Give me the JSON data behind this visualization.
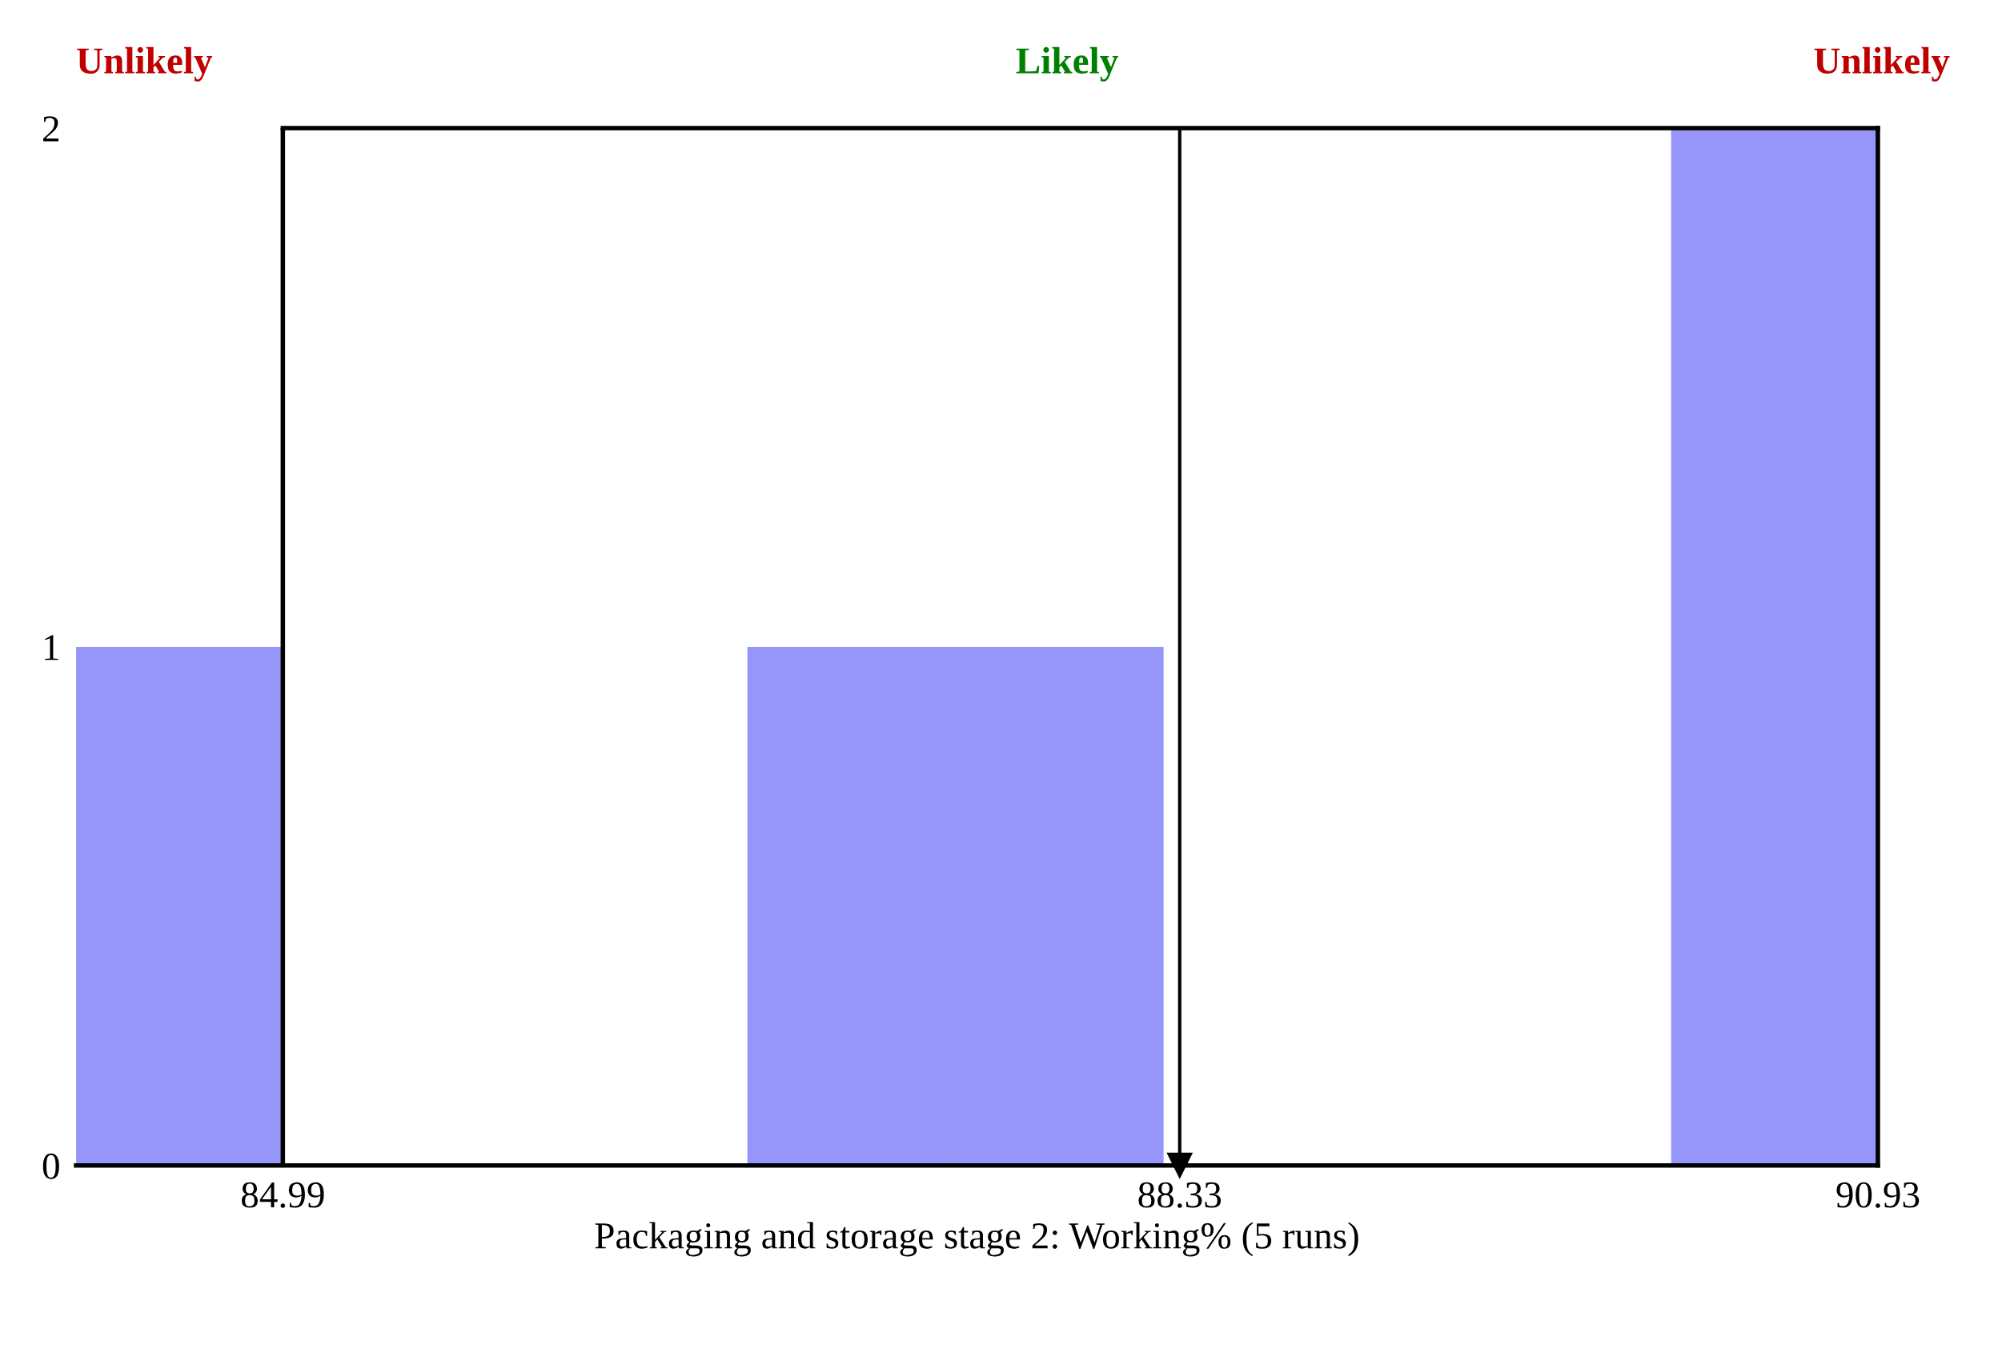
{
  "chart_data": {
    "type": "histogram",
    "xlabel": "Packaging and storage stage 2: Working% (5 runs)",
    "bins": [
      84.22,
      84.99,
      86.72,
      87.49,
      88.27,
      90.16,
      90.93
    ],
    "values": [
      1,
      0,
      1,
      1,
      0,
      2
    ],
    "color": "#9696fa",
    "xlim": [
      84.22,
      90.93
    ],
    "ylim": [
      0,
      2
    ],
    "xticks": [
      84.99,
      88.33,
      90.93
    ],
    "yticks": [
      0,
      1,
      2
    ],
    "grid": false,
    "ref_lines": [
      {
        "axis": "x",
        "value": 84.99,
        "color": "#000000"
      },
      {
        "axis": "x",
        "value": 88.33,
        "color": "#000000"
      }
    ],
    "annotations": [
      "Unlikely",
      "Likely",
      "Unlikely"
    ]
  }
}
